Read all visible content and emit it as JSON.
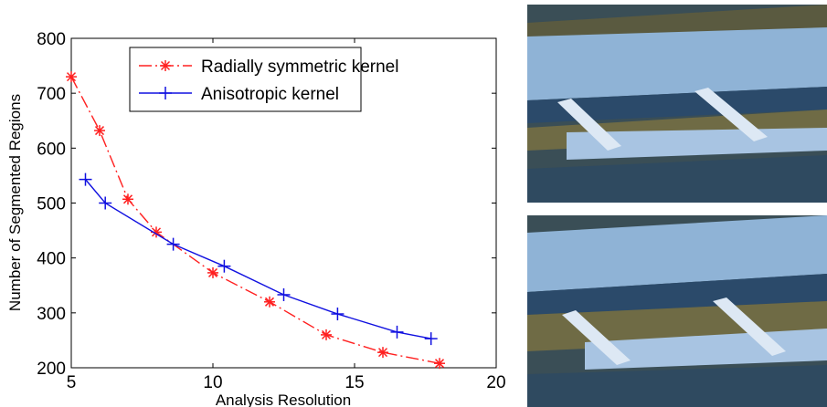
{
  "chart_data": {
    "type": "line",
    "xlabel": "Analysis Resolution",
    "ylabel": "Number of Segmented Regions",
    "xlim": [
      5,
      20
    ],
    "xticks": [
      5,
      10,
      15,
      20
    ],
    "ylim": [
      200,
      800
    ],
    "yticks": [
      200,
      300,
      400,
      500,
      600,
      700,
      800
    ],
    "legend": "upper right",
    "series": [
      {
        "name": "Radially symmetric kernel",
        "color": "#ff2020",
        "marker": "*",
        "x": [
          5,
          6,
          7,
          8,
          10,
          12,
          14,
          16,
          18
        ],
        "values": [
          730,
          632,
          507,
          447,
          373,
          320,
          260,
          228,
          208
        ]
      },
      {
        "name": "Anisotropic kernel",
        "color": "#1010e0",
        "marker": "+",
        "x": [
          5.5,
          6.2,
          8.6,
          10.4,
          12.5,
          14.4,
          16.5,
          17.7
        ],
        "values": [
          543,
          500,
          425,
          385,
          333,
          298,
          265,
          253
        ]
      }
    ]
  }
}
